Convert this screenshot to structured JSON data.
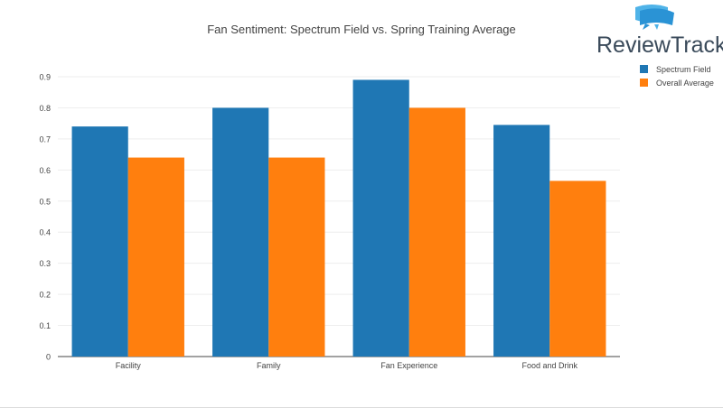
{
  "branding": {
    "logo_text": "ReviewTrackers"
  },
  "chart_data": {
    "type": "bar",
    "title": "Fan Sentiment: Spectrum Field vs. Spring Training Average",
    "xlabel": "",
    "ylabel": "",
    "categories": [
      "Facility",
      "Family",
      "Fan Experience",
      "Food and Drink"
    ],
    "series": [
      {
        "name": "Spectrum Field",
        "values": [
          0.74,
          0.8,
          0.89,
          0.745
        ],
        "color": "#1f77b4"
      },
      {
        "name": "Overall Average",
        "values": [
          0.64,
          0.64,
          0.8,
          0.565
        ],
        "color": "#ff7f0e"
      }
    ],
    "ylim": [
      0,
      0.9
    ],
    "yticks": [
      "0",
      "0.1",
      "0.2",
      "0.3",
      "0.4",
      "0.5",
      "0.6",
      "0.7",
      "0.8",
      "0.9"
    ],
    "grid": true,
    "legend_position": "top-right"
  }
}
